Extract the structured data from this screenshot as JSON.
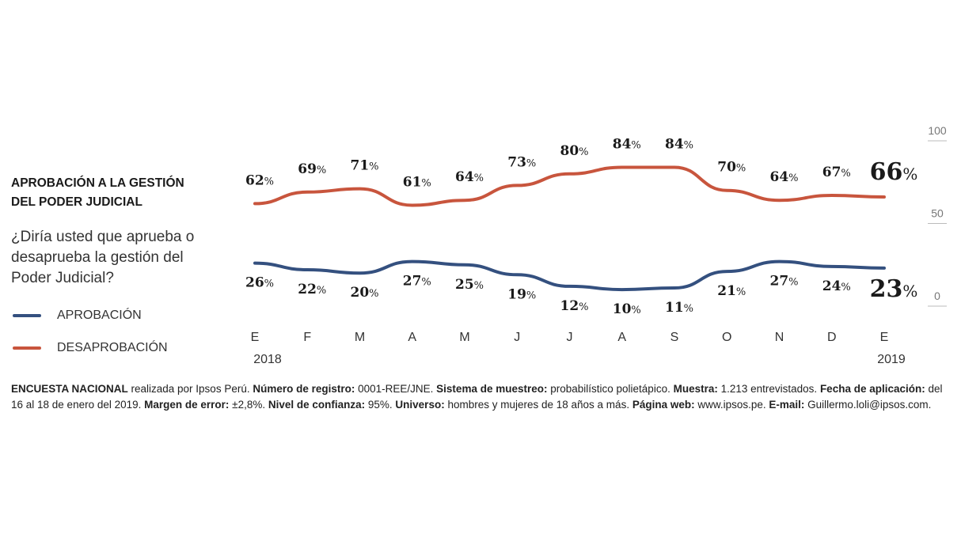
{
  "title_lines": [
    "APROBACIÓN A LA GESTIÓN",
    "DEL PODER JUDICIAL"
  ],
  "question_text": "¿Diría usted que aprueba o desaprueba la gestión del Poder Judicial?",
  "chart_data": {
    "type": "line",
    "categories": [
      "E",
      "F",
      "M",
      "A",
      "M",
      "J",
      "J",
      "A",
      "S",
      "O",
      "N",
      "D",
      "E"
    ],
    "year_labels": {
      "start": "2018",
      "end": "2019"
    },
    "ylim": [
      0,
      100
    ],
    "yticks": [
      "0",
      "50",
      "100"
    ],
    "series": [
      {
        "name": "APROBACIÓN",
        "color": "#34507f",
        "values": [
          26,
          22,
          20,
          27,
          25,
          19,
          12,
          10,
          11,
          21,
          27,
          24,
          23
        ]
      },
      {
        "name": "DESAPROBACIÓN",
        "color": "#c8553d",
        "values": [
          62,
          69,
          71,
          61,
          64,
          73,
          80,
          84,
          84,
          70,
          64,
          67,
          66
        ]
      }
    ],
    "value_suffix": "%",
    "legend": "left"
  },
  "footnote": [
    {
      "b": "ENCUESTA NACIONAL",
      "t": " realizada por Ipsos Perú. "
    },
    {
      "b": "Número de registro:",
      "t": " 0001-REE/JNE. "
    },
    {
      "b": "Sistema de muestreo:",
      "t": " probabilístico polietápico. "
    },
    {
      "b": "Muestra:",
      "t": " 1.213 entrevistados. "
    },
    {
      "b": "Fecha de aplicación:",
      "t": "  del 16 al 18 de enero del 2019. "
    },
    {
      "b": "Margen de error:",
      "t": " ±2,8%. "
    },
    {
      "b": "Nivel de confianza:",
      "t": " 95%. "
    },
    {
      "b": "Universo:",
      "t": " hombres y mujeres de 18 años a más. "
    },
    {
      "b": "Página web:",
      "t": " www.ipsos.pe. "
    },
    {
      "b": "E-mail:",
      "t": " Guillermo.loli@ipsos.com."
    }
  ]
}
